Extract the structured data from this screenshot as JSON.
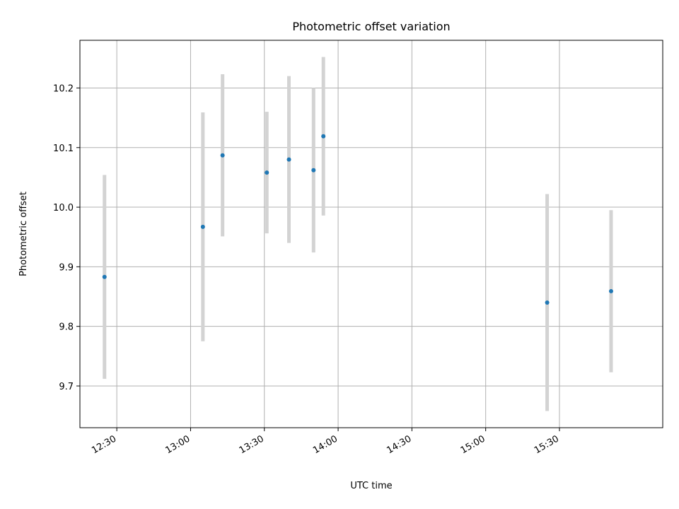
{
  "chart_data": {
    "type": "scatter",
    "title": "Photometric offset variation",
    "xlabel": "UTC time",
    "ylabel": "Photometric offset",
    "x_axis_kind": "time",
    "xlim": [
      "12:15",
      "16:12"
    ],
    "ylim": [
      9.63,
      10.28
    ],
    "x_ticks": [
      "12:30",
      "13:00",
      "13:30",
      "14:00",
      "14:30",
      "15:00",
      "15:30"
    ],
    "y_ticks": [
      "9.7",
      "9.8",
      "9.9",
      "10.0",
      "10.1",
      "10.2"
    ],
    "grid": true,
    "colors": {
      "point": "#1f77b4",
      "errorbar": "#d3d3d3",
      "grid": "#b0b0b0"
    },
    "series": [
      {
        "x": [
          "12:25",
          "13:05",
          "13:13",
          "13:31",
          "13:40",
          "13:50",
          "13:54",
          "15:25",
          "15:51"
        ],
        "y": [
          9.883,
          9.967,
          10.087,
          10.058,
          10.08,
          10.062,
          10.119,
          9.84,
          9.859
        ],
        "yerr": [
          0.171,
          0.192,
          0.136,
          0.102,
          0.14,
          0.138,
          0.133,
          0.182,
          0.136
        ]
      }
    ]
  }
}
